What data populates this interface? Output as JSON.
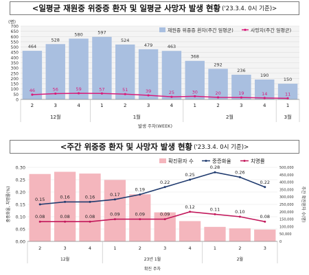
{
  "chart_data": [
    {
      "type": "bar",
      "title": "<일평균 재원중 위중증 환자 및 일평균 사망자 발생 현황",
      "title_suffix": "('23.3.4. 0시 기준)>",
      "y_unit": "(명)",
      "ylim": [
        0,
        700
      ],
      "yticks": [
        "0",
        "50",
        "100",
        "150",
        "200",
        "250",
        "300",
        "350",
        "400",
        "450",
        "500",
        "550",
        "600",
        "650",
        "700"
      ],
      "xlabel": "발생 주차(WEEK)",
      "week_labels": [
        "2",
        "3",
        "4",
        "1",
        "2",
        "3",
        "4",
        "1",
        "2",
        "3",
        "4",
        "1"
      ],
      "month_labels": [
        "12월",
        "1월",
        "2월",
        "3월"
      ],
      "legend": {
        "bar": "재원중 위중증 환자(주간 일평균)",
        "line": "사망자(주간 일평균)"
      },
      "series": [
        {
          "name": "재원중 위중증 환자(주간 일평균)",
          "type": "bar",
          "color": "#a9bfe0",
          "values": [
            464,
            528,
            580,
            597,
            524,
            479,
            463,
            368,
            292,
            236,
            190,
            150
          ]
        },
        {
          "name": "사망자(주간 일평균)",
          "type": "line",
          "color": "#d81b7a",
          "values": [
            46,
            56,
            59,
            57,
            51,
            39,
            25,
            30,
            20,
            19,
            14,
            11
          ]
        }
      ]
    },
    {
      "type": "bar",
      "title": "<주간 위중증 환자 및 사망자 발생 현황",
      "title_suffix": "('23.3.4. 0시 기준)>",
      "ylim_left": [
        0,
        0.3
      ],
      "yticks_left": [
        "0.00",
        "0.05",
        "0.10",
        "0.15",
        "0.20",
        "0.25",
        "0.30"
      ],
      "ylabel_left": "중증화율, 치명률(%)",
      "ylim_right": [
        0,
        500000
      ],
      "yticks_right": [
        "0",
        "50,000",
        "100,000",
        "150,000",
        "200,000",
        "250,000",
        "300,000",
        "350,000",
        "400,000",
        "450,000",
        "500,000"
      ],
      "ylabel_right": "주간 확진환자 수(명)",
      "xlabel": "확진 주차",
      "week_labels": [
        "2",
        "3",
        "4",
        "1",
        "2",
        "3",
        "4",
        "1",
        "2",
        "3"
      ],
      "month_labels": [
        "12월",
        "23년 1월",
        "2월"
      ],
      "legend": {
        "bar": "확진환자 수",
        "line1": "중증화율",
        "line2": "치명률"
      },
      "series": [
        {
          "name": "확진환자 수",
          "type": "bar",
          "axis": "right",
          "color": "#f4b6bd",
          "values": [
            455000,
            470000,
            458000,
            415000,
            318000,
            196000,
            137000,
            98000,
            88000,
            80000
          ]
        },
        {
          "name": "중증화율",
          "type": "line",
          "axis": "left",
          "color": "#1f3a6e",
          "values": [
            0.15,
            0.16,
            0.16,
            0.17,
            0.19,
            0.22,
            0.25,
            0.28,
            0.26,
            0.22
          ]
        },
        {
          "name": "치명률",
          "type": "line",
          "axis": "left",
          "color": "#c2185b",
          "values": [
            0.08,
            0.08,
            0.08,
            0.09,
            0.09,
            0.09,
            0.12,
            0.11,
            0.1,
            0.08
          ]
        }
      ]
    }
  ]
}
